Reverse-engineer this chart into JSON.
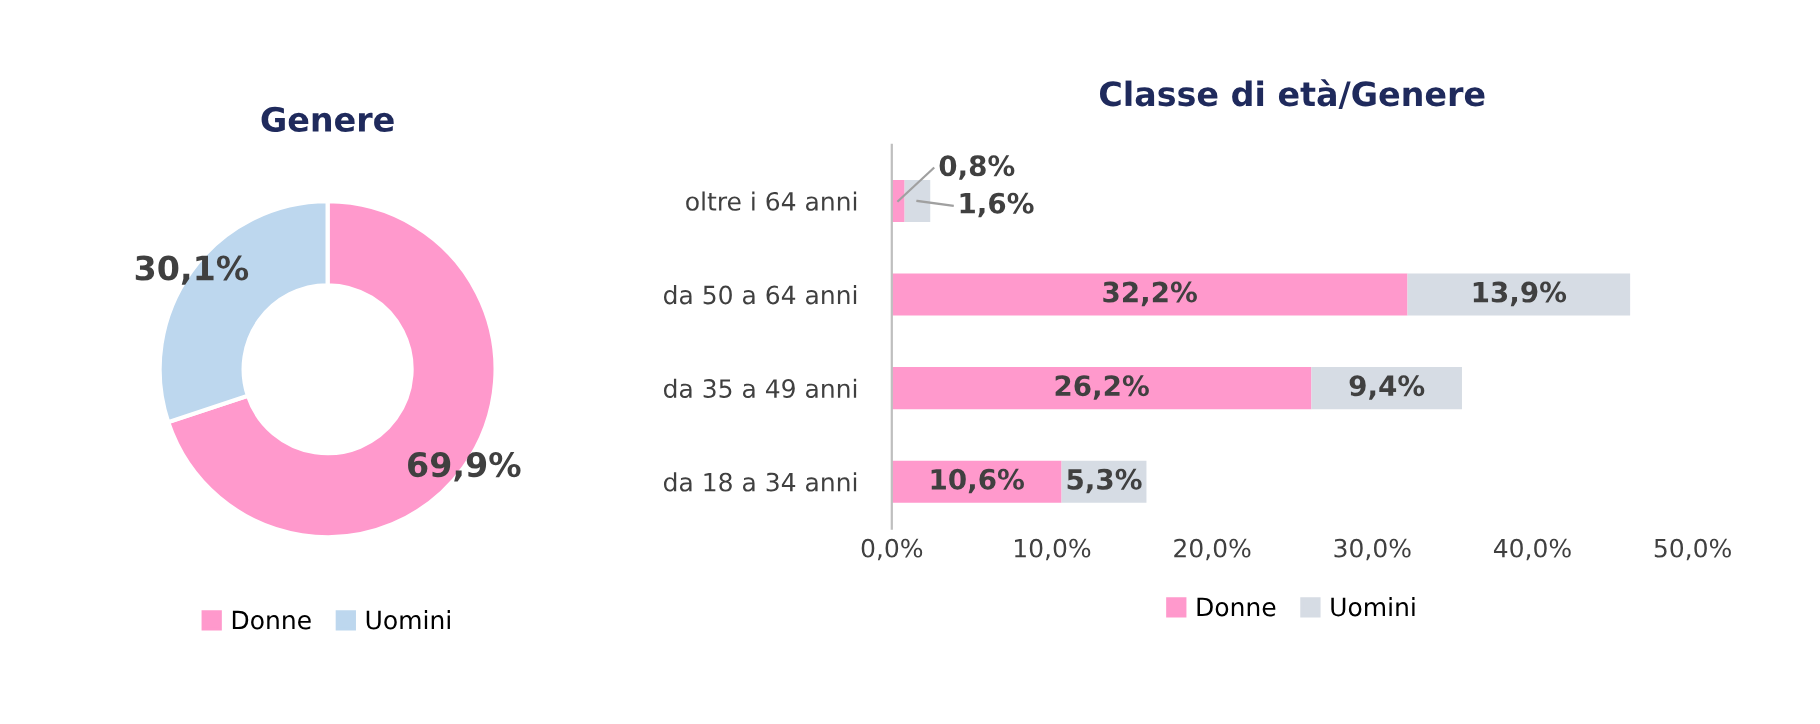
{
  "chart_data": [
    {
      "type": "donut",
      "title": "Genere",
      "categories": [
        "Donne",
        "Uomini"
      ],
      "values": [
        69.9,
        30.1
      ],
      "colors": [
        "#ff99cc",
        "#bdd7ee"
      ],
      "value_labels": [
        "69,9%",
        "30,1%"
      ],
      "legend": "bottom"
    },
    {
      "type": "bar",
      "title": "Classe di età/Genere",
      "orientation": "horizontal",
      "stacked": true,
      "categories": [
        "oltre i 64 anni",
        "da 50 a 64 anni",
        "da 35 a 49 anni",
        "da 18 a 34 anni"
      ],
      "series": [
        {
          "name": "Donne",
          "color": "#ff99cc",
          "values": [
            0.8,
            32.2,
            26.2,
            10.6
          ],
          "value_labels": [
            "0,8%",
            "32,2%",
            "26,2%",
            "10,6%"
          ]
        },
        {
          "name": "Uomini",
          "color": "#d6dce4",
          "values": [
            1.6,
            13.9,
            9.4,
            5.3
          ],
          "value_labels": [
            "1,6%",
            "13,9%",
            "9,4%",
            "5,3%"
          ]
        }
      ],
      "xlim": [
        0,
        50
      ],
      "xticks": [
        {
          "value": 0,
          "label": "0,0%"
        },
        {
          "value": 10,
          "label": "10,0%"
        },
        {
          "value": 20,
          "label": "20,0%"
        },
        {
          "value": 30,
          "label": "30,0%"
        },
        {
          "value": 40,
          "label": "40,0%"
        },
        {
          "value": 50,
          "label": "50,0%"
        }
      ],
      "legend": "bottom",
      "grid": false
    }
  ]
}
